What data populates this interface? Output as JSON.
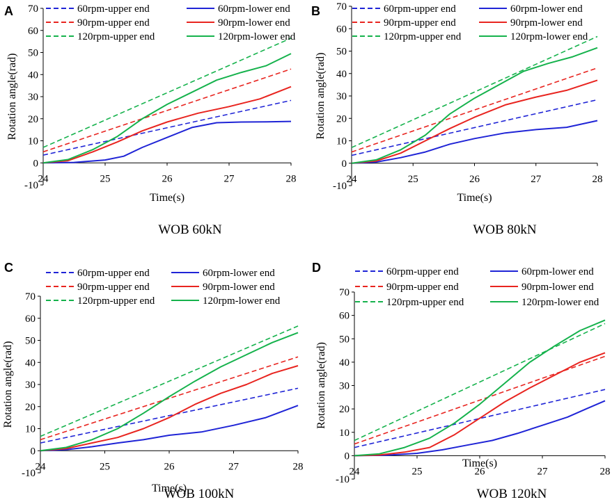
{
  "colors": {
    "60": "#1f24d6",
    "90": "#e8241f",
    "120": "#15b24c"
  },
  "chart_data": [
    {
      "type": "line",
      "label": "A",
      "caption": "WOB 60kN",
      "xlabel": "Time(s)",
      "ylabel": "Rotation angle(rad)",
      "xlim": [
        24,
        28
      ],
      "ylim": [
        -10,
        70
      ],
      "xticks": [
        24,
        25,
        26,
        27,
        28
      ],
      "yticks": [
        -10,
        0,
        10,
        20,
        30,
        40,
        50,
        60,
        70
      ],
      "series": [
        {
          "name": "60rpm-upper end",
          "rpm": "60",
          "dash": true,
          "points": [
            [
              24,
              3.5
            ],
            [
              28,
              28.3
            ]
          ]
        },
        {
          "name": "60rpm-lower end",
          "rpm": "60",
          "dash": false,
          "points": [
            [
              24,
              0
            ],
            [
              24.5,
              0.2
            ],
            [
              25,
              1.3
            ],
            [
              25.3,
              3
            ],
            [
              25.6,
              7
            ],
            [
              26,
              11.5
            ],
            [
              26.4,
              16
            ],
            [
              26.8,
              18.2
            ],
            [
              27.2,
              18.5
            ],
            [
              27.6,
              18.6
            ],
            [
              28,
              18.8
            ]
          ]
        },
        {
          "name": "90rpm-upper end",
          "rpm": "90",
          "dash": true,
          "points": [
            [
              24,
              5
            ],
            [
              28,
              42.5
            ]
          ]
        },
        {
          "name": "90rpm-lower end",
          "rpm": "90",
          "dash": false,
          "points": [
            [
              24,
              0
            ],
            [
              24.4,
              1
            ],
            [
              24.8,
              5
            ],
            [
              25.2,
              9.5
            ],
            [
              25.6,
              14.5
            ],
            [
              26,
              18.5
            ],
            [
              26.5,
              22.5
            ],
            [
              27,
              25.5
            ],
            [
              27.5,
              29
            ],
            [
              28,
              34.5
            ]
          ]
        },
        {
          "name": "120rpm-upper end",
          "rpm": "120",
          "dash": true,
          "points": [
            [
              24,
              7
            ],
            [
              28,
              56.5
            ]
          ]
        },
        {
          "name": "120rpm-lower end",
          "rpm": "120",
          "dash": false,
          "points": [
            [
              24,
              0
            ],
            [
              24.4,
              1.5
            ],
            [
              24.8,
              6
            ],
            [
              25.2,
              12
            ],
            [
              25.6,
              20
            ],
            [
              26,
              26.5
            ],
            [
              26.4,
              32
            ],
            [
              26.8,
              37.5
            ],
            [
              27.2,
              41
            ],
            [
              27.6,
              44
            ],
            [
              28,
              49.5
            ]
          ]
        }
      ]
    },
    {
      "type": "line",
      "label": "B",
      "caption": "WOB 80kN",
      "xlabel": "Time(s)",
      "ylabel": "Rotation angle(rad)",
      "xlim": [
        24,
        28
      ],
      "ylim": [
        -10,
        70
      ],
      "xticks": [
        24,
        25,
        26,
        27,
        28
      ],
      "yticks": [
        -10,
        0,
        10,
        20,
        30,
        40,
        50,
        60,
        70
      ],
      "series": [
        {
          "name": "60rpm-upper end",
          "rpm": "60",
          "dash": true,
          "points": [
            [
              24,
              3.5
            ],
            [
              28,
              28.3
            ]
          ]
        },
        {
          "name": "60rpm-lower end",
          "rpm": "60",
          "dash": false,
          "points": [
            [
              24,
              0
            ],
            [
              24.4,
              0.5
            ],
            [
              24.8,
              2.5
            ],
            [
              25.2,
              5
            ],
            [
              25.6,
              8.5
            ],
            [
              26,
              11
            ],
            [
              26.5,
              13.5
            ],
            [
              27,
              15
            ],
            [
              27.5,
              16
            ],
            [
              28,
              19
            ]
          ]
        },
        {
          "name": "90rpm-upper end",
          "rpm": "90",
          "dash": true,
          "points": [
            [
              24,
              5
            ],
            [
              28,
              42.5
            ]
          ]
        },
        {
          "name": "90rpm-lower end",
          "rpm": "90",
          "dash": false,
          "points": [
            [
              24,
              0
            ],
            [
              24.4,
              1
            ],
            [
              24.8,
              4.5
            ],
            [
              25.2,
              10
            ],
            [
              25.6,
              15.5
            ],
            [
              26,
              20.5
            ],
            [
              26.5,
              26
            ],
            [
              27,
              29.5
            ],
            [
              27.5,
              32.5
            ],
            [
              28,
              37
            ]
          ]
        },
        {
          "name": "120rpm-upper end",
          "rpm": "120",
          "dash": true,
          "points": [
            [
              24,
              7
            ],
            [
              28,
              56.5
            ]
          ]
        },
        {
          "name": "120rpm-lower end",
          "rpm": "120",
          "dash": false,
          "points": [
            [
              24,
              0
            ],
            [
              24.4,
              1.5
            ],
            [
              24.8,
              6
            ],
            [
              25.2,
              12.5
            ],
            [
              25.6,
              22
            ],
            [
              26,
              29
            ],
            [
              26.4,
              35
            ],
            [
              26.8,
              41
            ],
            [
              27.2,
              44.5
            ],
            [
              27.6,
              47.5
            ],
            [
              28,
              51.5
            ]
          ]
        }
      ]
    },
    {
      "type": "line",
      "label": "C",
      "caption": "WOB 100kN",
      "xlabel": "Time(s)",
      "ylabel": "Rotation angle(rad)",
      "xlim": [
        24,
        28
      ],
      "ylim": [
        -10,
        70
      ],
      "xticks": [
        24,
        25,
        26,
        27,
        28
      ],
      "yticks": [
        -10,
        0,
        10,
        20,
        30,
        40,
        50,
        60,
        70
      ],
      "series": [
        {
          "name": "60rpm-upper end",
          "rpm": "60",
          "dash": true,
          "points": [
            [
              24,
              3.5
            ],
            [
              28,
              28.3
            ]
          ]
        },
        {
          "name": "60rpm-lower end",
          "rpm": "60",
          "dash": false,
          "points": [
            [
              24,
              0
            ],
            [
              24.4,
              0.5
            ],
            [
              24.8,
              1.8
            ],
            [
              25.2,
              3.5
            ],
            [
              25.6,
              5
            ],
            [
              26,
              7
            ],
            [
              26.5,
              8.5
            ],
            [
              27,
              11.5
            ],
            [
              27.5,
              15
            ],
            [
              28,
              20.5
            ]
          ]
        },
        {
          "name": "90rpm-upper end",
          "rpm": "90",
          "dash": true,
          "points": [
            [
              24,
              5
            ],
            [
              28,
              42.5
            ]
          ]
        },
        {
          "name": "90rpm-lower end",
          "rpm": "90",
          "dash": false,
          "points": [
            [
              24,
              0
            ],
            [
              24.4,
              1
            ],
            [
              24.8,
              3.5
            ],
            [
              25.2,
              6
            ],
            [
              25.6,
              10
            ],
            [
              26,
              15
            ],
            [
              26.4,
              21
            ],
            [
              26.8,
              26
            ],
            [
              27.2,
              30
            ],
            [
              27.6,
              35
            ],
            [
              28,
              38.5
            ]
          ]
        },
        {
          "name": "120rpm-upper end",
          "rpm": "120",
          "dash": true,
          "points": [
            [
              24,
              6.5
            ],
            [
              28,
              56.5
            ]
          ]
        },
        {
          "name": "120rpm-lower end",
          "rpm": "120",
          "dash": false,
          "points": [
            [
              24,
              0
            ],
            [
              24.4,
              1.5
            ],
            [
              24.8,
              5
            ],
            [
              25.2,
              10
            ],
            [
              25.6,
              17
            ],
            [
              26,
              24.5
            ],
            [
              26.4,
              31.5
            ],
            [
              26.8,
              38
            ],
            [
              27.2,
              43.5
            ],
            [
              27.6,
              49
            ],
            [
              28,
              53.5
            ]
          ]
        }
      ]
    },
    {
      "type": "line",
      "label": "D",
      "caption": "WOB 120kN",
      "xlabel": "Time(s)",
      "ylabel": "Rotation angle(rad)",
      "xlim": [
        24,
        28
      ],
      "ylim": [
        -10,
        70
      ],
      "xticks": [
        24,
        25,
        26,
        27,
        28
      ],
      "yticks": [
        -10,
        0,
        10,
        20,
        30,
        40,
        50,
        60,
        70
      ],
      "series": [
        {
          "name": "60rpm-upper end",
          "rpm": "60",
          "dash": true,
          "points": [
            [
              24,
              3.5
            ],
            [
              28,
              28.3
            ]
          ]
        },
        {
          "name": "60rpm-lower end",
          "rpm": "60",
          "dash": false,
          "points": [
            [
              24,
              0
            ],
            [
              24.5,
              0.2
            ],
            [
              25,
              1
            ],
            [
              25.4,
              2.5
            ],
            [
              25.8,
              4.5
            ],
            [
              26.2,
              6.5
            ],
            [
              26.6,
              9.5
            ],
            [
              27,
              13
            ],
            [
              27.4,
              16.5
            ],
            [
              27.7,
              20
            ],
            [
              28,
              23.5
            ]
          ]
        },
        {
          "name": "90rpm-upper end",
          "rpm": "90",
          "dash": true,
          "points": [
            [
              24,
              5
            ],
            [
              28,
              42.5
            ]
          ]
        },
        {
          "name": "90rpm-lower end",
          "rpm": "90",
          "dash": false,
          "points": [
            [
              24,
              0
            ],
            [
              24.4,
              0.3
            ],
            [
              24.8,
              1.5
            ],
            [
              25.2,
              3.5
            ],
            [
              25.6,
              9
            ],
            [
              26,
              16
            ],
            [
              26.4,
              23
            ],
            [
              26.8,
              29
            ],
            [
              27.2,
              34.5
            ],
            [
              27.6,
              40
            ],
            [
              28,
              44
            ]
          ]
        },
        {
          "name": "120rpm-upper end",
          "rpm": "120",
          "dash": true,
          "points": [
            [
              24,
              6.5
            ],
            [
              28,
              56.5
            ]
          ]
        },
        {
          "name": "120rpm-lower end",
          "rpm": "120",
          "dash": false,
          "points": [
            [
              24,
              0
            ],
            [
              24.4,
              0.8
            ],
            [
              24.8,
              3.5
            ],
            [
              25.2,
              7.5
            ],
            [
              25.6,
              14
            ],
            [
              26,
              22
            ],
            [
              26.4,
              31
            ],
            [
              26.8,
              40
            ],
            [
              27.2,
              47
            ],
            [
              27.6,
              53.5
            ],
            [
              28,
              58
            ]
          ]
        }
      ]
    }
  ]
}
